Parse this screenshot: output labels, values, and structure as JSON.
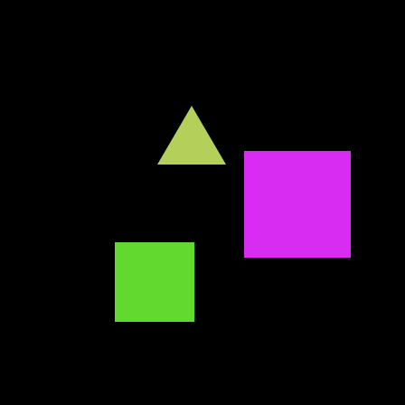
{
  "canvas": {
    "background": "#000000"
  },
  "shapes": [
    {
      "id": "triangle",
      "kind": "triangle",
      "color": "#b4d05a"
    },
    {
      "id": "magenta-square",
      "kind": "square",
      "color": "#d82cf2"
    },
    {
      "id": "green-square",
      "kind": "square",
      "color": "#62d92f"
    }
  ]
}
